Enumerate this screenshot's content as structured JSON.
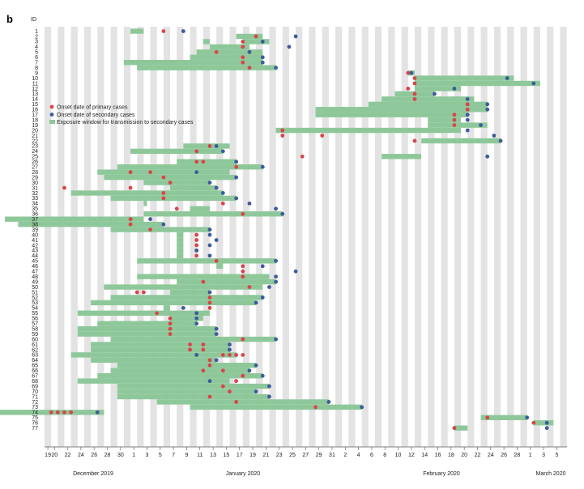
{
  "chart_data": {
    "type": "timeline",
    "panel_label": "b",
    "ylabel": "ID",
    "x_axis": {
      "start": "2019-12-19",
      "end": "2020-03-05",
      "tick_labels": [
        "19",
        "20",
        "22",
        "24",
        "26",
        "28",
        "30",
        "1",
        "3",
        "5",
        "7",
        "9",
        "11",
        "13",
        "15",
        "17",
        "19",
        "21",
        "23",
        "25",
        "27",
        "29",
        "31",
        "2",
        "4",
        "6",
        "8",
        "10",
        "12",
        "14",
        "16",
        "18",
        "20",
        "22",
        "24",
        "26",
        "28",
        "1",
        "3",
        "5"
      ],
      "month_labels": [
        "December 2019",
        "January 2020",
        "February 2020",
        "March 2020"
      ]
    },
    "legend": {
      "placement": "upper-left",
      "primary_label": "Onset date of primary cases",
      "secondary_label": "Onset date of secondary cases",
      "exposure_label": "Exposure window for transmission to secondary cases"
    },
    "colors": {
      "primary": "#d9454a",
      "secondary": "#3d5c9c",
      "exposure": "#8ec89a",
      "stripe": "#e3e3e3"
    },
    "series": [
      {
        "id": 1,
        "windows": [
          [
            12,
            14
          ]
        ],
        "primary": [
          17
        ],
        "secondary": [
          20
        ]
      },
      {
        "id": 2,
        "windows": [
          [
            28,
            32
          ]
        ],
        "primary": [
          31
        ],
        "secondary": [
          37
        ]
      },
      {
        "id": 3,
        "windows": [
          [
            23,
            24
          ],
          [
            29,
            33
          ]
        ],
        "primary": [
          29
        ],
        "secondary": [
          32
        ]
      },
      {
        "id": 4,
        "windows": [
          [
            24,
            30
          ]
        ],
        "primary": [
          29
        ],
        "secondary": [
          36
        ]
      },
      {
        "id": 5,
        "windows": [
          [
            22,
            32
          ]
        ],
        "primary": [
          25
        ],
        "secondary": [
          30
        ]
      },
      {
        "id": 6,
        "windows": [
          [
            21,
            32
          ]
        ],
        "primary": [
          29
        ],
        "secondary": [
          32
        ]
      },
      {
        "id": 7,
        "windows": [
          [
            11,
            32
          ]
        ],
        "primary": [
          29
        ],
        "secondary": [
          32
        ]
      },
      {
        "id": 8,
        "windows": [
          [
            13,
            34
          ]
        ],
        "primary": [
          30
        ],
        "secondary": [
          34
        ]
      },
      {
        "id": 9,
        "windows": [
          [
            54,
            55
          ]
        ],
        "primary": [
          54
        ],
        "secondary": [
          54.5
        ]
      },
      {
        "id": 10,
        "windows": [
          [
            55,
            70
          ]
        ],
        "primary": [
          55
        ],
        "secondary": [
          69
        ]
      },
      {
        "id": 11,
        "windows": [
          [
            55,
            74
          ]
        ],
        "primary": [
          55
        ],
        "secondary": [
          73
        ]
      },
      {
        "id": 12,
        "windows": [
          [
            55,
            62
          ]
        ],
        "primary": [
          54
        ],
        "secondary": [
          61
        ]
      },
      {
        "id": 13,
        "windows": [
          [
            52,
            58
          ]
        ],
        "primary": [
          55
        ],
        "secondary": [
          58
        ]
      },
      {
        "id": 14,
        "windows": [
          [
            50,
            64
          ]
        ],
        "primary": [
          55
        ],
        "secondary": [
          63
        ]
      },
      {
        "id": 15,
        "windows": [
          [
            48,
            66
          ]
        ],
        "primary": [
          63
        ],
        "secondary": [
          66
        ]
      },
      {
        "id": 16,
        "windows": [
          [
            40,
            66
          ]
        ],
        "primary": [
          63
        ],
        "secondary": [
          66
        ]
      },
      {
        "id": 17,
        "windows": [
          [
            40,
            63
          ]
        ],
        "primary": [
          61
        ],
        "secondary": [
          63
        ]
      },
      {
        "id": 18,
        "windows": [
          [
            57,
            62
          ]
        ],
        "primary": [
          61
        ],
        "secondary": [
          63
        ]
      },
      {
        "id": 19,
        "windows": [
          [
            57,
            66
          ]
        ],
        "primary": [
          61
        ],
        "secondary": [
          65
        ]
      },
      {
        "id": 20,
        "windows": [
          [
            34,
            62
          ]
        ],
        "primary": [
          35
        ],
        "secondary": [
          63
        ]
      },
      {
        "id": 21,
        "windows": [
          [],
          []
        ],
        "primary": [
          35,
          41
        ],
        "secondary": [
          67
        ]
      },
      {
        "id": 22,
        "windows": [
          [
            56,
            68
          ]
        ],
        "primary": [
          55
        ],
        "secondary": [
          68
        ]
      },
      {
        "id": 23,
        "windows": [
          [
            20,
            27
          ]
        ],
        "primary": [
          24
        ],
        "secondary": [
          25
        ]
      },
      {
        "id": 24,
        "windows": [
          [
            12,
            26
          ]
        ],
        "primary": [
          22
        ],
        "secondary": [
          26
        ]
      },
      {
        "id": 25,
        "windows": [
          [
            50,
            56
          ]
        ],
        "primary": [
          38
        ],
        "secondary": [
          66
        ]
      },
      {
        "id": 26,
        "windows": [
          [
            19,
            28
          ]
        ],
        "primary": [
          22,
          23
        ],
        "secondary": [
          28
        ]
      },
      {
        "id": 27,
        "windows": [
          [
            10,
            32
          ]
        ],
        "primary": [
          28
        ],
        "secondary": [
          32
        ]
      },
      {
        "id": 28,
        "windows": [
          [
            7,
            27
          ]
        ],
        "primary": [
          12,
          15
        ],
        "secondary": [
          22
        ]
      },
      {
        "id": 29,
        "windows": [
          [
            8,
            28
          ]
        ],
        "primary": [
          17
        ],
        "secondary": [
          28
        ]
      },
      {
        "id": 30,
        "windows": [
          [
            14,
            24
          ]
        ],
        "primary": [
          18
        ],
        "secondary": [
          24
        ]
      },
      {
        "id": 31,
        "windows": [
          [
            18,
            25
          ]
        ],
        "primary": [
          2,
          12
        ],
        "secondary": [
          25
        ]
      },
      {
        "id": 32,
        "windows": [
          [
            3,
            26
          ]
        ],
        "primary": [
          17
        ],
        "secondary": [
          26
        ]
      },
      {
        "id": 33,
        "windows": [
          [
            9,
            28
          ]
        ],
        "primary": [
          17
        ],
        "secondary": [
          28
        ]
      },
      {
        "id": 34,
        "windows": [
          [
            14,
            14.5
          ]
        ],
        "primary": [
          26
        ],
        "secondary": [
          30
        ]
      },
      {
        "id": 35,
        "windows": [
          [
            21,
            24
          ]
        ],
        "primary": [
          19
        ],
        "secondary": [
          34
        ]
      },
      {
        "id": 36,
        "windows": [
          [
            14,
            35
          ]
        ],
        "primary": [
          29
        ],
        "secondary": [
          35
        ]
      },
      {
        "id": 37,
        "windows": [
          [
            -7,
            14
          ]
        ],
        "primary": [
          12
        ],
        "secondary": [
          15
        ]
      },
      {
        "id": 38,
        "windows": [
          [
            -5,
            17
          ]
        ],
        "primary": [
          12
        ],
        "secondary": [
          17
        ]
      },
      {
        "id": 39,
        "windows": [
          [
            9,
            24
          ]
        ],
        "primary": [
          15
        ],
        "secondary": [
          24
        ]
      },
      {
        "id": 40,
        "windows": [
          [
            19,
            20
          ]
        ],
        "primary": [
          22
        ],
        "secondary": [
          24
        ]
      },
      {
        "id": 41,
        "windows": [
          [
            19,
            20
          ]
        ],
        "primary": [
          22
        ],
        "secondary": [
          25
        ]
      },
      {
        "id": 42,
        "windows": [
          [
            19,
            20
          ]
        ],
        "primary": [
          22
        ],
        "secondary": [
          24
        ]
      },
      {
        "id": 43,
        "windows": [
          [
            19,
            20
          ]
        ],
        "primary": [
          22
        ],
        "secondary": [
          22
        ]
      },
      {
        "id": 44,
        "windows": [
          [
            19,
            20
          ]
        ],
        "primary": [
          22
        ],
        "secondary": [
          24
        ]
      },
      {
        "id": 45,
        "windows": [
          [
            13,
            34
          ]
        ],
        "primary": [
          25
        ],
        "secondary": [
          34
        ]
      },
      {
        "id": 46,
        "windows": [
          [
            25,
            26
          ]
        ],
        "primary": [
          29
        ],
        "secondary": [
          32
        ]
      },
      {
        "id": 47,
        "windows": [
          [],
          []
        ],
        "primary": [
          29
        ],
        "secondary": [
          37
        ]
      },
      {
        "id": 48,
        "windows": [
          [
            13,
            33
          ]
        ],
        "primary": [
          29
        ],
        "secondary": [
          34
        ]
      },
      {
        "id": 49,
        "windows": [
          [
            19,
            34
          ]
        ],
        "primary": [
          23
        ],
        "secondary": [
          34
        ]
      },
      {
        "id": 50,
        "windows": [
          [
            8,
            32
          ]
        ],
        "primary": [
          30
        ],
        "secondary": [
          33
        ]
      },
      {
        "id": 51,
        "windows": [
          [
            18,
            24
          ]
        ],
        "primary": [
          13,
          14
        ],
        "secondary": [
          24
        ]
      },
      {
        "id": 52,
        "windows": [
          [
            9,
            32
          ]
        ],
        "primary": [
          24
        ],
        "secondary": [
          32
        ]
      },
      {
        "id": 53,
        "windows": [
          [
            6,
            31
          ]
        ],
        "primary": [
          24
        ],
        "secondary": [
          31
        ]
      },
      {
        "id": 54,
        "windows": [
          [
            17,
            18
          ]
        ],
        "primary": [
          24
        ],
        "secondary": [
          20
        ]
      },
      {
        "id": 55,
        "windows": [
          [
            4,
            24
          ]
        ],
        "primary": [
          16
        ],
        "secondary": [
          22
        ]
      },
      {
        "id": 56,
        "windows": [
          [
            18,
            23
          ]
        ],
        "primary": [
          18
        ],
        "secondary": [
          22
        ]
      },
      {
        "id": 57,
        "windows": [
          [
            7,
            22
          ]
        ],
        "primary": [
          18
        ],
        "secondary": [
          22
        ]
      },
      {
        "id": 58,
        "windows": [
          [
            4,
            25
          ]
        ],
        "primary": [
          18
        ],
        "secondary": [
          25
        ]
      },
      {
        "id": 59,
        "windows": [
          [
            4,
            25
          ]
        ],
        "primary": [
          18
        ],
        "secondary": [
          25
        ]
      },
      {
        "id": 60,
        "windows": [
          [
            9,
            34
          ]
        ],
        "primary": [
          29
        ],
        "secondary": [
          34
        ]
      },
      {
        "id": 61,
        "windows": [
          [
            6,
            27
          ]
        ],
        "primary": [
          21,
          23
        ],
        "secondary": [
          27
        ]
      },
      {
        "id": 62,
        "windows": [
          [
            6,
            27
          ]
        ],
        "primary": [
          21,
          23
        ],
        "secondary": [
          27
        ]
      },
      {
        "id": 63,
        "windows": [
          [
            3,
            28
          ]
        ],
        "primary": [
          26,
          27,
          28,
          29
        ],
        "secondary": [
          22
        ]
      },
      {
        "id": 64,
        "windows": [
          [
            6,
            25
          ]
        ],
        "primary": [
          24
        ],
        "secondary": [
          25
        ]
      },
      {
        "id": 65,
        "windows": [
          [
            10,
            31
          ]
        ],
        "primary": [
          24
        ],
        "secondary": [
          31
        ]
      },
      {
        "id": 66,
        "windows": [
          [
            9,
            30
          ]
        ],
        "primary": [
          23,
          26
        ],
        "secondary": [
          30
        ]
      },
      {
        "id": 67,
        "windows": [
          [
            7,
            32
          ]
        ],
        "primary": [
          29
        ],
        "secondary": [
          32
        ]
      },
      {
        "id": 68,
        "windows": [
          [
            4,
            27
          ]
        ],
        "primary": [
          28
        ],
        "secondary": [
          24
        ]
      },
      {
        "id": 69,
        "windows": [
          [
            10,
            33
          ]
        ],
        "primary": [
          26
        ],
        "secondary": [
          33
        ]
      },
      {
        "id": 70,
        "windows": [
          [
            10,
            31
          ]
        ],
        "primary": [
          27
        ],
        "secondary": [
          31
        ]
      },
      {
        "id": 71,
        "windows": [
          [
            10,
            33
          ]
        ],
        "primary": [
          24
        ],
        "secondary": [
          33
        ]
      },
      {
        "id": 72,
        "windows": [
          [
            16,
            42
          ]
        ],
        "primary": [
          28
        ],
        "secondary": [
          42
        ]
      },
      {
        "id": 73,
        "windows": [
          [
            21,
            47
          ]
        ],
        "primary": [
          40
        ],
        "secondary": [
          47
        ]
      },
      {
        "id": 74,
        "windows": [
          [
            -12,
            8
          ]
        ],
        "primary": [
          0,
          1,
          2,
          3
        ],
        "secondary": [
          7
        ]
      },
      {
        "id": 75,
        "windows": [
          [
            65,
            72
          ]
        ],
        "primary": [
          66
        ],
        "secondary": [
          72
        ]
      },
      {
        "id": 76,
        "windows": [
          [
            73,
            76
          ]
        ],
        "primary": [
          73
        ],
        "secondary": [
          75
        ]
      },
      {
        "id": 77,
        "windows": [
          [
            61,
            63
          ]
        ],
        "primary": [
          61
        ],
        "secondary": [
          75
        ]
      }
    ]
  }
}
